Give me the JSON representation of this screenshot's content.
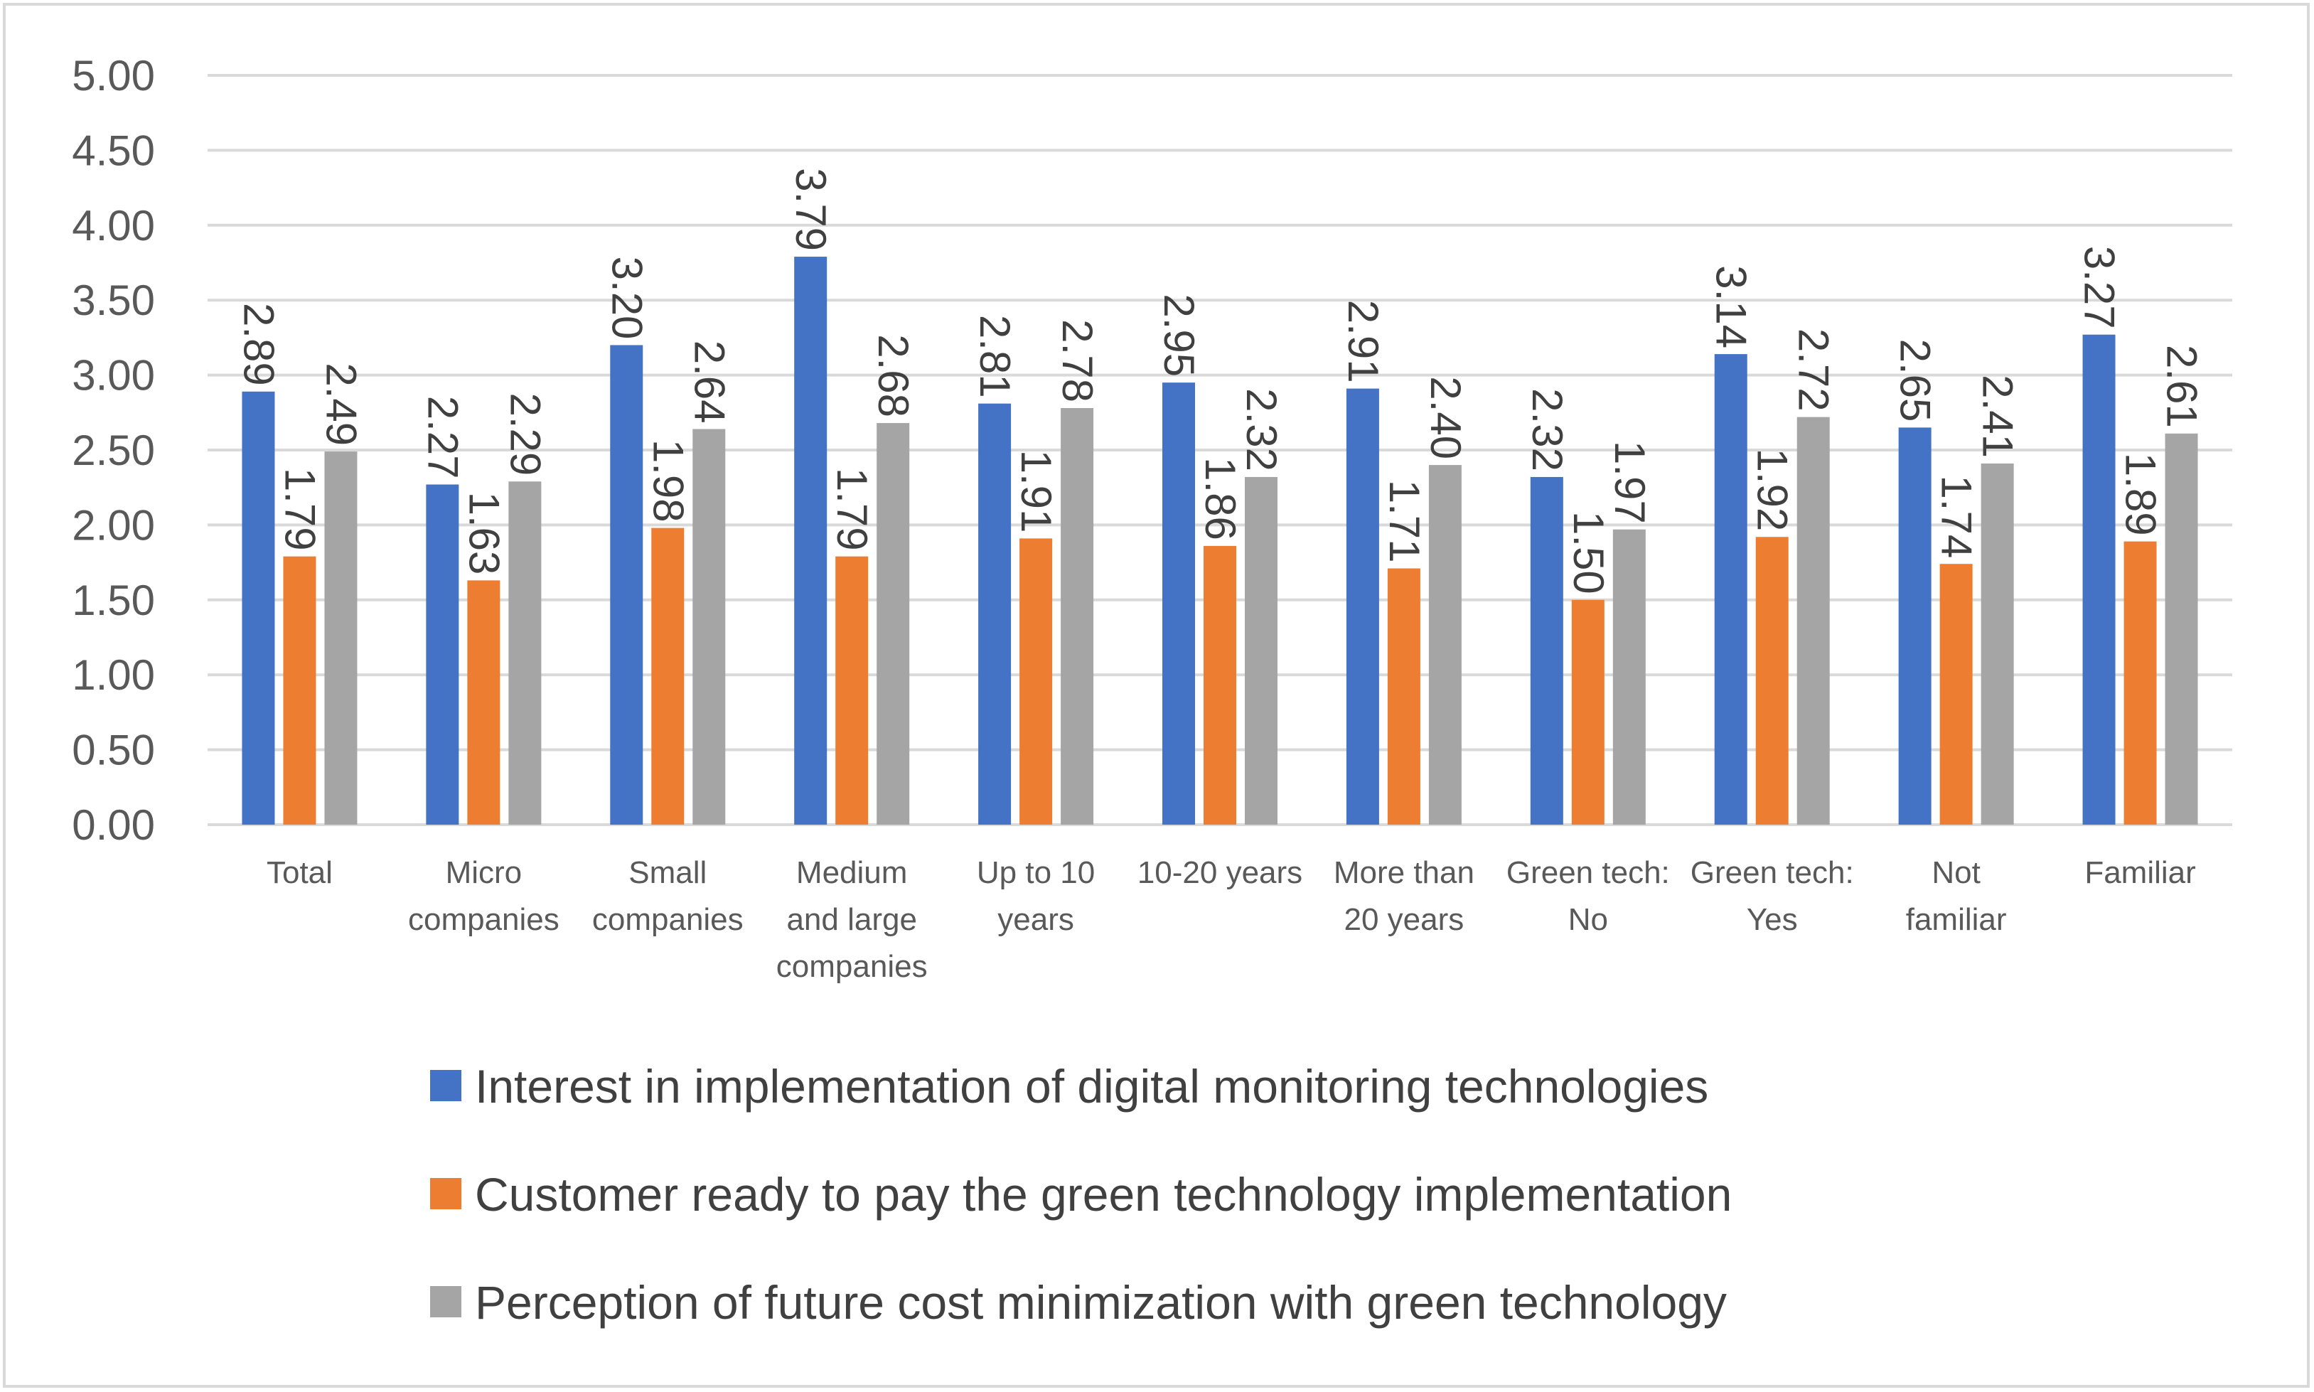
{
  "chart_data": {
    "type": "bar",
    "title": "",
    "xlabel": "",
    "ylabel": "",
    "ylim": [
      0,
      5
    ],
    "yticks": [
      "0.00",
      "0.50",
      "1.00",
      "1.50",
      "2.00",
      "2.50",
      "3.00",
      "3.50",
      "4.00",
      "4.50",
      "5.00"
    ],
    "grid": true,
    "legend_position": "bottom",
    "categories": [
      [
        "Total"
      ],
      [
        "Micro",
        "companies"
      ],
      [
        "Small",
        "companies"
      ],
      [
        "Medium",
        "and large",
        "companies"
      ],
      [
        "Up to 10",
        "years"
      ],
      [
        "10-20 years"
      ],
      [
        "More than",
        "20 years"
      ],
      [
        "Green tech:",
        "No"
      ],
      [
        "Green tech:",
        "Yes"
      ],
      [
        "Not",
        "familiar"
      ],
      [
        "Familiar"
      ]
    ],
    "series": [
      {
        "name": "Interest in implementation of digital monitoring technologies",
        "color": "#4472C4",
        "values": [
          2.89,
          2.27,
          3.2,
          3.79,
          2.81,
          2.95,
          2.91,
          2.32,
          3.14,
          2.65,
          3.27
        ]
      },
      {
        "name": "Customer ready to pay the green technology implementation",
        "color": "#ED7D31",
        "values": [
          1.79,
          1.63,
          1.98,
          1.79,
          1.91,
          1.86,
          1.71,
          1.5,
          1.92,
          1.74,
          1.89
        ]
      },
      {
        "name": "Perception of future cost minimization with green technology",
        "color": "#A5A5A5",
        "values": [
          2.49,
          2.29,
          2.64,
          2.68,
          2.78,
          2.32,
          2.4,
          1.97,
          2.72,
          2.41,
          2.61
        ]
      }
    ]
  }
}
